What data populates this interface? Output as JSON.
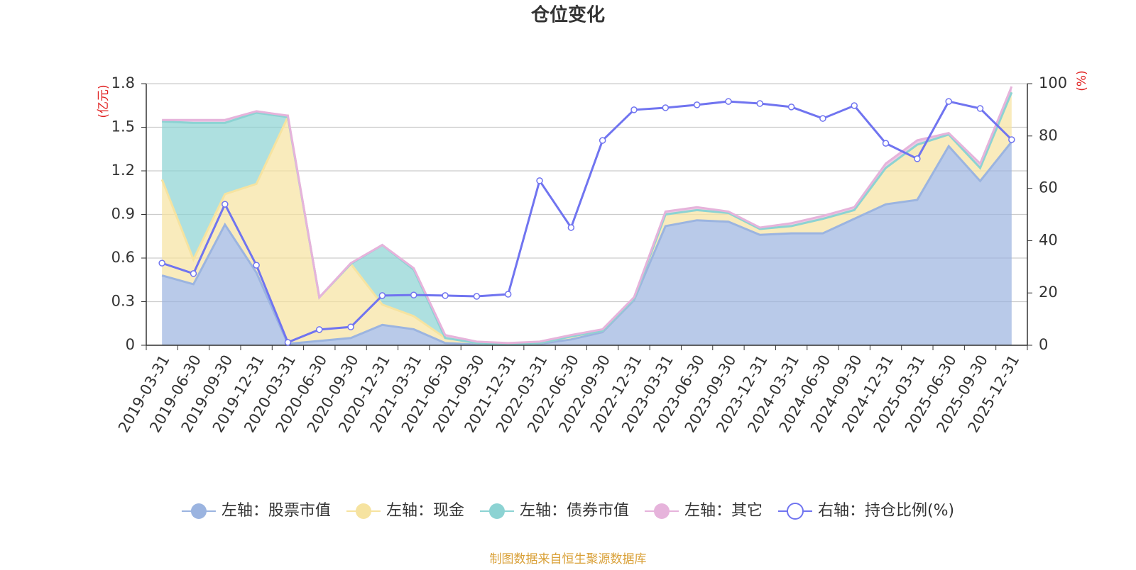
{
  "chart_data": {
    "type": "stacked-area-line",
    "title": "仓位变化",
    "source": "制图数据来自恒生聚源数据库",
    "ylabel": "(亿元)",
    "y2label": "(%)",
    "categories": [
      "2019-03-31",
      "2019-06-30",
      "2019-09-30",
      "2019-12-31",
      "2020-03-31",
      "2020-06-30",
      "2020-09-30",
      "2020-12-31",
      "2021-03-31",
      "2021-06-30",
      "2021-09-30",
      "2021-12-31",
      "2022-03-31",
      "2022-06-30",
      "2022-09-30",
      "2022-12-31",
      "2023-03-31",
      "2023-06-30",
      "2023-09-30",
      "2023-12-31",
      "2024-03-31",
      "2024-06-30",
      "2024-09-30",
      "2024-12-31",
      "2025-03-31",
      "2025-06-30",
      "2025-09-30",
      "2025-12-31"
    ],
    "ylim": [
      0,
      1.8
    ],
    "yticks": [
      0,
      0.3,
      0.6,
      0.9,
      1.2,
      1.5,
      1.8
    ],
    "y2lim": [
      0,
      100
    ],
    "y2ticks": [
      0,
      20,
      40,
      60,
      80,
      100
    ],
    "grid": true,
    "series": [
      {
        "name": "左轴：股票市值",
        "color": "#9bb4e0",
        "stacked": true,
        "values": [
          0.48,
          0.42,
          0.83,
          0.5,
          0.01,
          0.03,
          0.05,
          0.14,
          0.11,
          0.015,
          0.005,
          0.005,
          0.01,
          0.04,
          0.09,
          0.31,
          0.82,
          0.86,
          0.85,
          0.76,
          0.77,
          0.77,
          0.87,
          0.97,
          1.0,
          1.37,
          1.13,
          1.4
        ]
      },
      {
        "name": "左轴：现金",
        "color": "#f6e3a0",
        "stacked": true,
        "values": [
          0.66,
          0.17,
          0.21,
          0.61,
          1.56,
          0.3,
          0.51,
          0.14,
          0.09,
          0.035,
          0.01,
          0,
          0.005,
          0.02,
          0.01,
          0.01,
          0.08,
          0.07,
          0.06,
          0.04,
          0.05,
          0.1,
          0.06,
          0.25,
          0.38,
          0.08,
          0.09,
          0.34
        ]
      },
      {
        "name": "左轴：债券市值",
        "color": "#8cd3d3",
        "stacked": true,
        "values": [
          0.4,
          0.94,
          0.49,
          0.49,
          0,
          0,
          0,
          0.41,
          0.32,
          0,
          0,
          0,
          0,
          0,
          0,
          0,
          0,
          0,
          0,
          0,
          0,
          0,
          0,
          0,
          0,
          0,
          0,
          0
        ]
      },
      {
        "name": "左轴：其它",
        "color": "#e6b3db",
        "stacked": true,
        "values": [
          0.01,
          0.02,
          0.02,
          0.01,
          0.01,
          0,
          0.005,
          0,
          0.01,
          0.02,
          0.01,
          0.01,
          0.01,
          0.01,
          0.01,
          0.01,
          0.02,
          0.02,
          0.01,
          0.01,
          0.02,
          0.02,
          0.02,
          0.03,
          0.03,
          0.01,
          0.03,
          0.04
        ]
      },
      {
        "name": "右轴：持仓比例(%)",
        "color": "#7074f0",
        "axis": "y2",
        "values": [
          31.4,
          27.4,
          53.9,
          30.6,
          1.1,
          6.0,
          7.0,
          19.0,
          19.2,
          19.0,
          18.7,
          19.5,
          62.9,
          45.0,
          78.3,
          90.0,
          90.8,
          91.9,
          93.2,
          92.4,
          91.1,
          86.7,
          91.6,
          77.2,
          71.3,
          93.2,
          90.5,
          78.6
        ]
      }
    ]
  }
}
